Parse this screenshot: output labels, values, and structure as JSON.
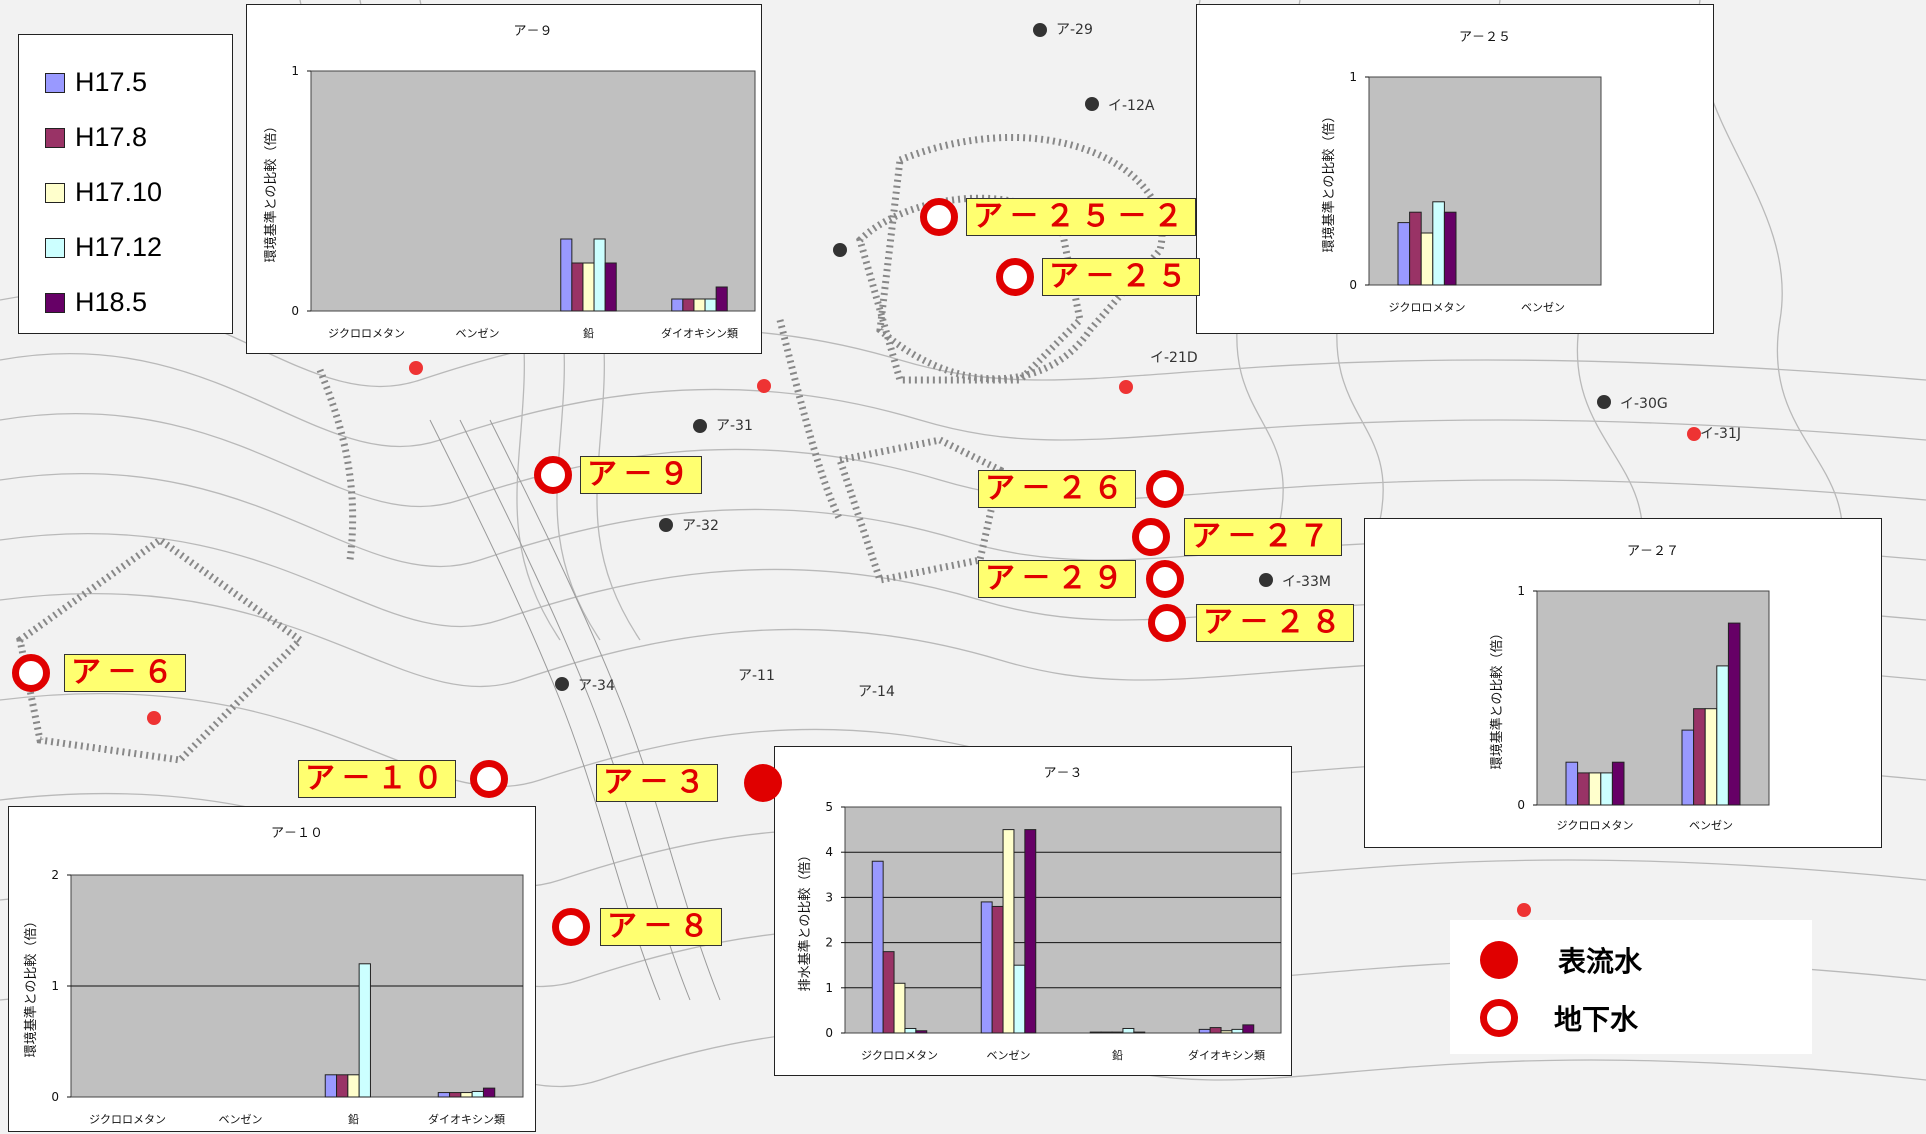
{
  "legend": {
    "items": [
      {
        "label": "H17.5",
        "color": "#9999ff"
      },
      {
        "label": "H17.8",
        "color": "#993366"
      },
      {
        "label": "H17.10",
        "color": "#ffffcc"
      },
      {
        "label": "H17.12",
        "color": "#ccffff"
      },
      {
        "label": "H18.5",
        "color": "#660066"
      }
    ]
  },
  "type_legend": {
    "surface_water": "表流水",
    "groundwater": "地下水"
  },
  "sites": [
    {
      "id": "a25-2",
      "label": "ア－２５－２",
      "type": "groundwater"
    },
    {
      "id": "a25",
      "label": "ア－２５",
      "type": "groundwater"
    },
    {
      "id": "a9",
      "label": "ア－９",
      "type": "groundwater"
    },
    {
      "id": "a26",
      "label": "ア－２６",
      "type": "groundwater"
    },
    {
      "id": "a27",
      "label": "ア－２７",
      "type": "groundwater"
    },
    {
      "id": "a29",
      "label": "ア－２９",
      "type": "groundwater"
    },
    {
      "id": "a28",
      "label": "ア－２８",
      "type": "groundwater"
    },
    {
      "id": "a6",
      "label": "ア－６",
      "type": "groundwater"
    },
    {
      "id": "a10",
      "label": "ア－１０",
      "type": "groundwater"
    },
    {
      "id": "a3",
      "label": "ア－３",
      "type": "surface_water"
    },
    {
      "id": "a8",
      "label": "ア－８",
      "type": "groundwater"
    }
  ],
  "chart_data": [
    {
      "id": "a9",
      "type": "bar",
      "title": "ア－９",
      "ylabel": "環境基準との比較（倍）",
      "ylim": [
        0,
        1
      ],
      "yticks": [
        0,
        1
      ],
      "categories": [
        "ジクロロメタン",
        "ベンゼン",
        "鉛",
        "ダイオキシン類"
      ],
      "series": [
        {
          "name": "H17.5",
          "values": [
            0,
            0,
            0.3,
            0.05
          ]
        },
        {
          "name": "H17.8",
          "values": [
            0,
            0,
            0.2,
            0.05
          ]
        },
        {
          "name": "H17.10",
          "values": [
            0,
            0,
            0.2,
            0.05
          ]
        },
        {
          "name": "H17.12",
          "values": [
            0,
            0,
            0.3,
            0.05
          ]
        },
        {
          "name": "H18.5",
          "values": [
            0,
            0,
            0.2,
            0.1
          ]
        }
      ]
    },
    {
      "id": "a25",
      "type": "bar",
      "title": "ア－２５",
      "ylabel": "環境基準との比較（倍）",
      "ylim": [
        0,
        1
      ],
      "yticks": [
        0,
        1
      ],
      "categories": [
        "ジクロロメタン",
        "ベンゼン"
      ],
      "series": [
        {
          "name": "H17.5",
          "values": [
            0.3,
            0
          ]
        },
        {
          "name": "H17.8",
          "values": [
            0.35,
            0
          ]
        },
        {
          "name": "H17.10",
          "values": [
            0.25,
            0
          ]
        },
        {
          "name": "H17.12",
          "values": [
            0.4,
            0
          ]
        },
        {
          "name": "H18.5",
          "values": [
            0.35,
            0
          ]
        }
      ]
    },
    {
      "id": "a27",
      "type": "bar",
      "title": "ア－２７",
      "ylabel": "環境基準との比較（倍）",
      "ylim": [
        0,
        1
      ],
      "yticks": [
        0,
        1
      ],
      "categories": [
        "ジクロロメタン",
        "ベンゼン"
      ],
      "series": [
        {
          "name": "H17.5",
          "values": [
            0.2,
            0.35
          ]
        },
        {
          "name": "H17.8",
          "values": [
            0.15,
            0.45
          ]
        },
        {
          "name": "H17.10",
          "values": [
            0.15,
            0.45
          ]
        },
        {
          "name": "H17.12",
          "values": [
            0.15,
            0.65
          ]
        },
        {
          "name": "H18.5",
          "values": [
            0.2,
            0.85
          ]
        }
      ]
    },
    {
      "id": "a3",
      "type": "bar",
      "title": "ア－３",
      "ylabel": "排水基準との比較（倍）",
      "ylim": [
        0,
        5
      ],
      "yticks": [
        0,
        1,
        2,
        3,
        4,
        5
      ],
      "categories": [
        "ジクロロメタン",
        "ベンゼン",
        "鉛",
        "ダイオキシン類"
      ],
      "series": [
        {
          "name": "H17.5",
          "values": [
            3.8,
            2.9,
            0.02,
            0.08
          ]
        },
        {
          "name": "H17.8",
          "values": [
            1.8,
            2.8,
            0.02,
            0.12
          ]
        },
        {
          "name": "H17.10",
          "values": [
            1.1,
            4.5,
            0.02,
            0.05
          ]
        },
        {
          "name": "H17.12",
          "values": [
            0.1,
            1.5,
            0.1,
            0.08
          ]
        },
        {
          "name": "H18.5",
          "values": [
            0.05,
            4.5,
            0.02,
            0.18
          ]
        }
      ]
    },
    {
      "id": "a10",
      "type": "bar",
      "title": "ア－１０",
      "ylabel": "環境基準との比較（倍）",
      "ylim": [
        0,
        2
      ],
      "yticks": [
        0,
        1,
        2
      ],
      "categories": [
        "ジクロロメタン",
        "ベンゼン",
        "鉛",
        "ダイオキシン類"
      ],
      "series": [
        {
          "name": "H17.5",
          "values": [
            0,
            0,
            0.2,
            0.04
          ]
        },
        {
          "name": "H17.8",
          "values": [
            0,
            0,
            0.2,
            0.04
          ]
        },
        {
          "name": "H17.10",
          "values": [
            0,
            0,
            0.2,
            0.04
          ]
        },
        {
          "name": "H17.12",
          "values": [
            0,
            0,
            1.2,
            0.05
          ]
        },
        {
          "name": "H18.5",
          "values": [
            0,
            0,
            0,
            0.08
          ]
        }
      ]
    }
  ]
}
